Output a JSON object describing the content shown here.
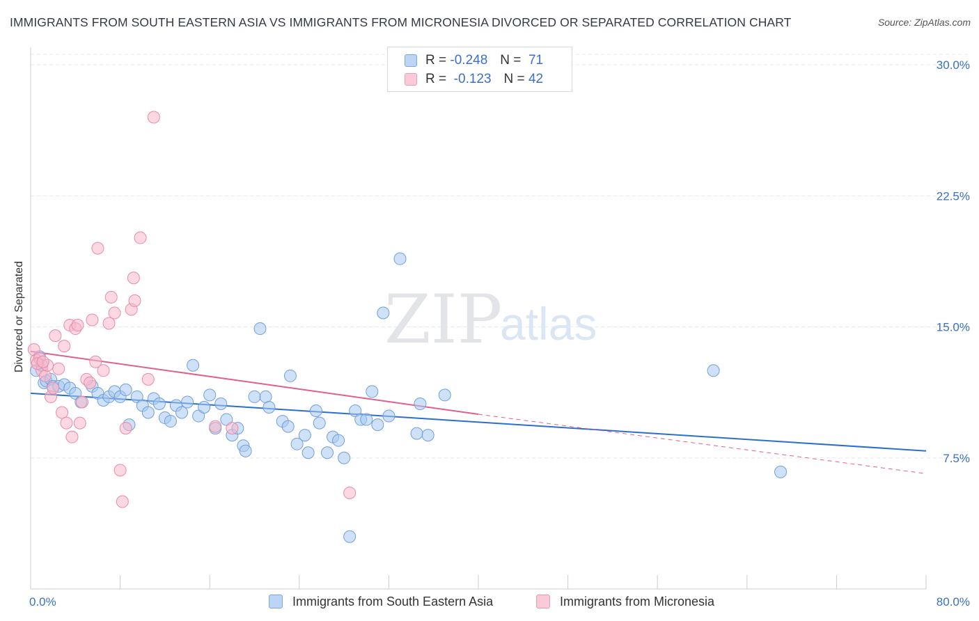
{
  "title": "IMMIGRANTS FROM SOUTH EASTERN ASIA VS IMMIGRANTS FROM MICRONESIA DIVORCED OR SEPARATED CORRELATION CHART",
  "source": "Source: ZipAtlas.com",
  "watermark": {
    "zip": "ZIP",
    "atlas": "atlas"
  },
  "legend": {
    "rows": [
      {
        "r_label": "R =",
        "r_value": "-0.248",
        "n_label": "N =",
        "n_value": "71",
        "color": "#a8c8f0"
      },
      {
        "r_label": "R =",
        "r_value": "-0.123",
        "n_label": "N =",
        "n_value": "42",
        "color": "#f7b8cb"
      }
    ]
  },
  "colors": {
    "blue_fill": "#a8c8f0",
    "blue_stroke": "#6f9fdc",
    "blue_line": "#2a6fd0",
    "pink_fill": "#f7b8cb",
    "pink_stroke": "#e98aa8",
    "pink_line": "#e0608c",
    "grid": "#e6e8eb",
    "tick_text": "#3a6fc8"
  },
  "chart_data": {
    "type": "scatter",
    "title": "IMMIGRANTS FROM SOUTH EASTERN ASIA VS IMMIGRANTS FROM MICRONESIA DIVORCED OR SEPARATED CORRELATION CHART",
    "xlabel": "",
    "ylabel": "Divorced or Separated",
    "xlim": [
      0,
      80
    ],
    "ylim": [
      0,
      31
    ],
    "x_tick_labels": [
      "0.0%",
      "80.0%"
    ],
    "y_ticks": [
      7.5,
      15.0,
      22.5,
      30.0
    ],
    "y_tick_labels": [
      "7.5%",
      "15.0%",
      "22.5%",
      "30.0%"
    ],
    "grid": true,
    "legend_position": "top-center",
    "series": [
      {
        "name": "Immigrants from South Eastern Asia",
        "color": "#a8c8f0",
        "trend": {
          "x": [
            0,
            80
          ],
          "y": [
            11.2,
            7.9
          ],
          "dashed_extension": false
        },
        "points": [
          [
            0.5,
            12.5
          ],
          [
            0.8,
            13.3
          ],
          [
            1.0,
            12.8
          ],
          [
            1.2,
            11.8
          ],
          [
            1.4,
            11.9
          ],
          [
            1.8,
            12.0
          ],
          [
            2.0,
            11.6
          ],
          [
            2.5,
            11.6
          ],
          [
            3.0,
            11.7
          ],
          [
            3.5,
            11.5
          ],
          [
            4.0,
            11.2
          ],
          [
            4.5,
            10.7
          ],
          [
            5.5,
            11.6
          ],
          [
            6.0,
            11.2
          ],
          [
            6.5,
            10.8
          ],
          [
            7.0,
            11.0
          ],
          [
            7.5,
            11.3
          ],
          [
            8.0,
            11.0
          ],
          [
            8.5,
            11.4
          ],
          [
            8.8,
            9.4
          ],
          [
            9.5,
            11.0
          ],
          [
            10.0,
            10.5
          ],
          [
            10.5,
            10.1
          ],
          [
            11.0,
            10.9
          ],
          [
            11.5,
            10.6
          ],
          [
            12.0,
            9.8
          ],
          [
            12.5,
            9.6
          ],
          [
            13.0,
            10.5
          ],
          [
            13.5,
            10.1
          ],
          [
            14.0,
            10.7
          ],
          [
            14.5,
            12.8
          ],
          [
            15.0,
            9.9
          ],
          [
            15.5,
            10.4
          ],
          [
            16.0,
            11.1
          ],
          [
            16.5,
            9.2
          ],
          [
            17.0,
            10.6
          ],
          [
            17.5,
            9.7
          ],
          [
            18.0,
            8.8
          ],
          [
            18.5,
            9.2
          ],
          [
            19.0,
            8.2
          ],
          [
            19.2,
            7.9
          ],
          [
            20.0,
            11.0
          ],
          [
            20.5,
            14.9
          ],
          [
            21.0,
            11.0
          ],
          [
            21.3,
            10.4
          ],
          [
            22.5,
            9.6
          ],
          [
            23.0,
            9.3
          ],
          [
            23.2,
            12.2
          ],
          [
            23.8,
            8.3
          ],
          [
            24.5,
            8.8
          ],
          [
            24.8,
            7.8
          ],
          [
            25.5,
            10.2
          ],
          [
            25.8,
            9.5
          ],
          [
            26.5,
            7.8
          ],
          [
            27.0,
            8.7
          ],
          [
            27.5,
            8.5
          ],
          [
            28.0,
            7.5
          ],
          [
            28.5,
            3.0
          ],
          [
            29.0,
            10.2
          ],
          [
            29.5,
            9.7
          ],
          [
            30.0,
            9.7
          ],
          [
            30.5,
            11.3
          ],
          [
            31.0,
            9.4
          ],
          [
            31.5,
            15.8
          ],
          [
            32.0,
            9.9
          ],
          [
            33.0,
            18.9
          ],
          [
            34.5,
            8.9
          ],
          [
            34.8,
            10.6
          ],
          [
            35.5,
            8.8
          ],
          [
            37.0,
            11.1
          ],
          [
            61.0,
            12.5
          ],
          [
            67.0,
            6.7
          ]
        ]
      },
      {
        "name": "Immigrants from Micronesia",
        "color": "#f7b8cb",
        "trend": {
          "x": [
            0,
            40
          ],
          "y": [
            13.6,
            10.0
          ],
          "dashed_extension": true,
          "extension_to": [
            80,
            6.6
          ]
        },
        "points": [
          [
            0.3,
            13.7
          ],
          [
            0.5,
            13.1
          ],
          [
            0.8,
            13.2
          ],
          [
            1.0,
            12.5
          ],
          [
            1.3,
            12.2
          ],
          [
            1.5,
            12.8
          ],
          [
            1.8,
            11.0
          ],
          [
            2.0,
            11.5
          ],
          [
            2.2,
            14.5
          ],
          [
            2.5,
            12.6
          ],
          [
            2.8,
            10.1
          ],
          [
            3.0,
            13.9
          ],
          [
            3.2,
            9.5
          ],
          [
            3.5,
            15.1
          ],
          [
            3.7,
            8.7
          ],
          [
            4.0,
            14.9
          ],
          [
            4.2,
            15.1
          ],
          [
            4.4,
            9.5
          ],
          [
            4.6,
            10.7
          ],
          [
            5.0,
            12.0
          ],
          [
            5.3,
            11.8
          ],
          [
            5.5,
            15.4
          ],
          [
            5.8,
            13.0
          ],
          [
            6.0,
            19.5
          ],
          [
            6.5,
            12.5
          ],
          [
            7.0,
            15.2
          ],
          [
            7.2,
            16.7
          ],
          [
            7.5,
            15.8
          ],
          [
            8.0,
            6.8
          ],
          [
            8.2,
            5.0
          ],
          [
            8.5,
            9.2
          ],
          [
            9.0,
            16.0
          ],
          [
            9.2,
            17.8
          ],
          [
            9.3,
            16.5
          ],
          [
            9.8,
            20.1
          ],
          [
            10.5,
            12.0
          ],
          [
            11.0,
            27.0
          ],
          [
            16.5,
            9.3
          ],
          [
            18.0,
            9.2
          ],
          [
            28.5,
            5.5
          ],
          [
            0.6,
            12.9
          ],
          [
            1.1,
            13.0
          ]
        ]
      }
    ]
  },
  "bottom_legend": [
    {
      "label": "Immigrants from South Eastern Asia",
      "color": "#a8c8f0"
    },
    {
      "label": "Immigrants from Micronesia",
      "color": "#f7b8cb"
    }
  ]
}
